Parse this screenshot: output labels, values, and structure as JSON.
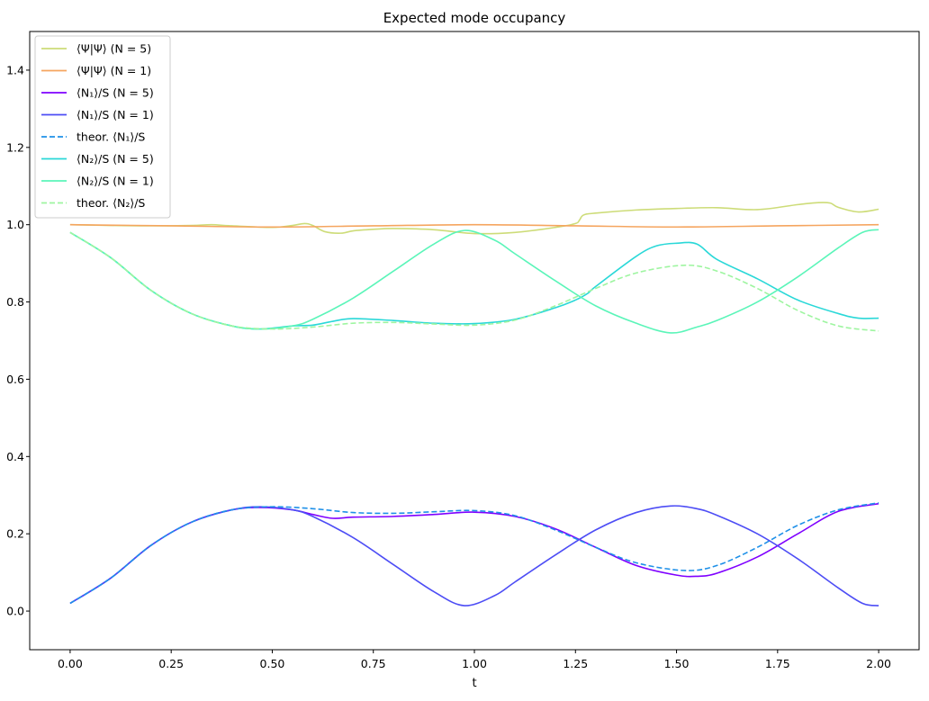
{
  "chart_data": {
    "type": "line",
    "title": "Expected mode occupancy",
    "xlabel": "t",
    "ylabel": "",
    "xlim": [
      -0.1,
      2.1
    ],
    "ylim": [
      -0.1,
      1.5
    ],
    "xticks": [
      "0.00",
      "0.25",
      "0.50",
      "0.75",
      "1.00",
      "1.25",
      "1.50",
      "1.75",
      "2.00"
    ],
    "yticks": [
      "0.0",
      "0.2",
      "0.4",
      "0.6",
      "0.8",
      "1.0",
      "1.2",
      "1.4"
    ],
    "legend_position": "upper-left",
    "grid": false,
    "series": [
      {
        "name": "⟨Ψ|Ψ⟩ (N = 5)",
        "color": "#cddc78",
        "dash": "solid",
        "x": [
          0.0,
          0.1,
          0.2,
          0.3,
          0.35,
          0.4,
          0.5,
          0.55,
          0.58,
          0.6,
          0.63,
          0.67,
          0.7,
          0.75,
          0.8,
          0.9,
          1.0,
          1.1,
          1.2,
          1.25,
          1.26,
          1.27,
          1.3,
          1.4,
          1.5,
          1.6,
          1.7,
          1.8,
          1.85,
          1.88,
          1.9,
          1.95,
          2.0
        ],
        "y": [
          1.0,
          0.998,
          0.997,
          0.998,
          1.0,
          0.997,
          0.993,
          0.998,
          1.003,
          0.998,
          0.982,
          0.978,
          0.984,
          0.988,
          0.99,
          0.987,
          0.977,
          0.98,
          0.993,
          1.003,
          1.012,
          1.025,
          1.03,
          1.038,
          1.042,
          1.044,
          1.039,
          1.052,
          1.057,
          1.056,
          1.045,
          1.033,
          1.04
        ]
      },
      {
        "name": "⟨Ψ|Ψ⟩ (N = 1)",
        "color": "#f5a55f",
        "dash": "solid",
        "x": [
          0.0,
          0.25,
          0.5,
          0.75,
          1.0,
          1.25,
          1.5,
          1.75,
          2.0
        ],
        "y": [
          1.0,
          0.997,
          0.994,
          0.997,
          1.0,
          0.997,
          0.994,
          0.997,
          1.0
        ]
      },
      {
        "name": "⟨N₁⟩/S (N = 5)",
        "color": "#7f00ff",
        "dash": "solid",
        "x": [
          0.0,
          0.1,
          0.2,
          0.3,
          0.4,
          0.47,
          0.55,
          0.6,
          0.65,
          0.7,
          0.8,
          0.9,
          1.0,
          1.1,
          1.2,
          1.3,
          1.4,
          1.5,
          1.55,
          1.6,
          1.7,
          1.8,
          1.9,
          2.0
        ],
        "y": [
          0.02,
          0.085,
          0.17,
          0.23,
          0.262,
          0.268,
          0.262,
          0.25,
          0.24,
          0.243,
          0.245,
          0.25,
          0.256,
          0.245,
          0.213,
          0.165,
          0.118,
          0.093,
          0.09,
          0.098,
          0.14,
          0.2,
          0.258,
          0.278
        ]
      },
      {
        "name": "⟨N₁⟩/S (N = 1)",
        "color": "#4d4df5",
        "dash": "solid",
        "x": [
          0.0,
          0.1,
          0.2,
          0.3,
          0.4,
          0.47,
          0.55,
          0.6,
          0.7,
          0.8,
          0.9,
          0.975,
          1.05,
          1.1,
          1.2,
          1.3,
          1.4,
          1.485,
          1.55,
          1.6,
          1.7,
          1.8,
          1.9,
          1.96,
          2.0
        ],
        "y": [
          0.02,
          0.085,
          0.17,
          0.23,
          0.262,
          0.27,
          0.262,
          0.245,
          0.19,
          0.12,
          0.05,
          0.014,
          0.04,
          0.075,
          0.145,
          0.21,
          0.255,
          0.272,
          0.265,
          0.248,
          0.2,
          0.135,
          0.06,
          0.02,
          0.014
        ]
      },
      {
        "name": "theor. ⟨N₁⟩/S",
        "color": "#1e90e8",
        "dash": "dashed",
        "x": [
          0.0,
          0.1,
          0.2,
          0.3,
          0.4,
          0.5,
          0.6,
          0.7,
          0.8,
          0.9,
          1.0,
          1.1,
          1.2,
          1.3,
          1.4,
          1.52,
          1.6,
          1.7,
          1.8,
          1.9,
          2.0
        ],
        "y": [
          0.02,
          0.085,
          0.17,
          0.23,
          0.262,
          0.27,
          0.265,
          0.255,
          0.253,
          0.257,
          0.26,
          0.247,
          0.21,
          0.165,
          0.125,
          0.105,
          0.118,
          0.165,
          0.222,
          0.262,
          0.28
        ]
      },
      {
        "name": "⟨N₂⟩/S (N = 5)",
        "color": "#2ad8d8",
        "dash": "solid",
        "x": [
          0.0,
          0.1,
          0.2,
          0.3,
          0.4,
          0.47,
          0.55,
          0.6,
          0.65,
          0.7,
          0.8,
          0.9,
          1.0,
          1.1,
          1.2,
          1.25,
          1.28,
          1.3,
          1.4,
          1.45,
          1.5,
          1.55,
          1.6,
          1.7,
          1.8,
          1.9,
          1.95,
          2.0
        ],
        "y": [
          0.98,
          0.915,
          0.83,
          0.77,
          0.738,
          0.73,
          0.738,
          0.74,
          0.75,
          0.757,
          0.752,
          0.745,
          0.744,
          0.755,
          0.785,
          0.805,
          0.822,
          0.84,
          0.918,
          0.945,
          0.952,
          0.95,
          0.91,
          0.86,
          0.805,
          0.77,
          0.758,
          0.758
        ]
      },
      {
        "name": "⟨N₂⟩/S (N = 1)",
        "color": "#5bf5b9",
        "dash": "solid",
        "x": [
          0.0,
          0.1,
          0.2,
          0.3,
          0.4,
          0.47,
          0.55,
          0.6,
          0.7,
          0.8,
          0.9,
          0.975,
          1.05,
          1.1,
          1.2,
          1.3,
          1.4,
          1.485,
          1.55,
          1.6,
          1.7,
          1.8,
          1.9,
          1.96,
          2.0
        ],
        "y": [
          0.98,
          0.915,
          0.83,
          0.77,
          0.738,
          0.73,
          0.738,
          0.755,
          0.81,
          0.88,
          0.95,
          0.985,
          0.96,
          0.925,
          0.855,
          0.79,
          0.745,
          0.72,
          0.735,
          0.752,
          0.8,
          0.865,
          0.94,
          0.98,
          0.987
        ]
      },
      {
        "name": "theor. ⟨N₂⟩/S",
        "color": "#9ef5a0",
        "dash": "dashed",
        "x": [
          0.0,
          0.1,
          0.2,
          0.3,
          0.4,
          0.5,
          0.6,
          0.7,
          0.8,
          0.9,
          1.0,
          1.1,
          1.2,
          1.3,
          1.4,
          1.52,
          1.6,
          1.7,
          1.8,
          1.9,
          2.0
        ],
        "y": [
          0.98,
          0.915,
          0.83,
          0.77,
          0.738,
          0.73,
          0.735,
          0.745,
          0.747,
          0.743,
          0.74,
          0.753,
          0.79,
          0.835,
          0.875,
          0.895,
          0.88,
          0.835,
          0.778,
          0.738,
          0.725
        ]
      }
    ]
  }
}
